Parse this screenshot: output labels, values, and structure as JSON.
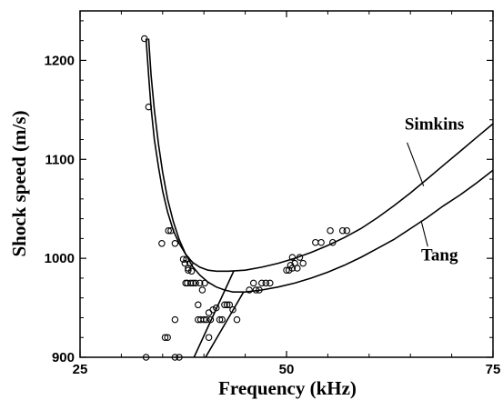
{
  "chart_data": {
    "type": "scatter",
    "title": "",
    "xlabel": "Frequency (kHz)",
    "ylabel": "Shock speed (m/s)",
    "xlim": [
      25,
      75
    ],
    "ylim": [
      900,
      1250
    ],
    "xticks": [
      25,
      50,
      75
    ],
    "yticks": [
      900,
      1000,
      1100,
      1200
    ],
    "grid": false,
    "series": [
      {
        "name": "Simkins",
        "kind": "curve",
        "label_at": [
          64.3,
          1130
        ],
        "points": [
          [
            33.0,
            1222
          ],
          [
            33.3,
            1185
          ],
          [
            33.6,
            1152
          ],
          [
            34.0,
            1120
          ],
          [
            34.5,
            1092
          ],
          [
            35.0,
            1068
          ],
          [
            35.6,
            1047
          ],
          [
            36.3,
            1028
          ],
          [
            37.0,
            1015
          ],
          [
            37.8,
            1004
          ],
          [
            38.6,
            996
          ],
          [
            39.5,
            991
          ],
          [
            40.5,
            988
          ],
          [
            41.5,
            987
          ],
          [
            43.0,
            987
          ],
          [
            45.0,
            988
          ],
          [
            47.0,
            991
          ],
          [
            49.0,
            995
          ],
          [
            51.0,
            1000
          ],
          [
            53.0,
            1006
          ],
          [
            55.0,
            1013
          ],
          [
            57.0,
            1021
          ],
          [
            59.0,
            1030
          ],
          [
            61.0,
            1041
          ],
          [
            63.0,
            1053
          ],
          [
            65.0,
            1066
          ],
          [
            67.0,
            1080
          ],
          [
            69.0,
            1094
          ],
          [
            71.0,
            1108
          ],
          [
            73.0,
            1122
          ],
          [
            75.0,
            1136
          ]
        ]
      },
      {
        "name": "Tang",
        "kind": "curve",
        "label_at": [
          66.3,
          998
        ],
        "points": [
          [
            33.3,
            1222
          ],
          [
            33.6,
            1185
          ],
          [
            34.0,
            1150
          ],
          [
            34.5,
            1115
          ],
          [
            35.0,
            1087
          ],
          [
            35.6,
            1060
          ],
          [
            36.3,
            1037
          ],
          [
            37.0,
            1019
          ],
          [
            37.8,
            1004
          ],
          [
            38.6,
            992
          ],
          [
            39.5,
            983
          ],
          [
            40.5,
            976
          ],
          [
            41.5,
            971
          ],
          [
            42.5,
            968
          ],
          [
            43.5,
            966
          ],
          [
            45.0,
            966
          ],
          [
            47.0,
            968
          ],
          [
            49.0,
            971
          ],
          [
            51.0,
            975
          ],
          [
            53.0,
            980
          ],
          [
            55.0,
            986
          ],
          [
            57.0,
            993
          ],
          [
            59.0,
            1001
          ],
          [
            61.0,
            1010
          ],
          [
            63.0,
            1019
          ],
          [
            65.0,
            1030
          ],
          [
            67.0,
            1041
          ],
          [
            69.0,
            1053
          ],
          [
            71.0,
            1064
          ],
          [
            73.0,
            1076
          ],
          [
            75.0,
            1089
          ]
        ]
      },
      {
        "name": "",
        "kind": "curve",
        "points": [
          [
            38.8,
            900
          ],
          [
            43.6,
            987
          ]
        ]
      },
      {
        "name": "",
        "kind": "curve",
        "points": [
          [
            40.2,
            900
          ],
          [
            44.8,
            966
          ]
        ]
      },
      {
        "name": "",
        "kind": "markers",
        "points": [
          [
            32.8,
            1222
          ],
          [
            33.3,
            1153
          ],
          [
            34.9,
            1015
          ],
          [
            35.7,
            1028
          ],
          [
            36.0,
            1028
          ],
          [
            36.5,
            1015
          ],
          [
            37.5,
            999
          ],
          [
            37.7,
            995
          ],
          [
            37.9,
            999
          ],
          [
            38.1,
            990
          ],
          [
            38.1,
            988
          ],
          [
            38.3,
            995
          ],
          [
            38.5,
            987
          ],
          [
            37.8,
            975
          ],
          [
            38.0,
            975
          ],
          [
            38.4,
            975
          ],
          [
            38.7,
            975
          ],
          [
            39.0,
            975
          ],
          [
            39.5,
            975
          ],
          [
            39.8,
            968
          ],
          [
            40.1,
            975
          ],
          [
            39.3,
            953
          ],
          [
            39.3,
            938
          ],
          [
            39.6,
            938
          ],
          [
            40.0,
            938
          ],
          [
            40.3,
            938
          ],
          [
            40.6,
            945
          ],
          [
            40.8,
            938
          ],
          [
            41.1,
            948
          ],
          [
            41.5,
            950
          ],
          [
            41.9,
            938
          ],
          [
            42.2,
            938
          ],
          [
            42.5,
            953
          ],
          [
            42.8,
            953
          ],
          [
            43.1,
            953
          ],
          [
            43.5,
            948
          ],
          [
            44.0,
            938
          ],
          [
            40.6,
            920
          ],
          [
            35.3,
            920
          ],
          [
            35.6,
            920
          ],
          [
            36.5,
            938
          ],
          [
            36.5,
            900
          ],
          [
            37.0,
            900
          ],
          [
            33.0,
            900
          ],
          [
            45.5,
            968
          ],
          [
            46.0,
            975
          ],
          [
            46.3,
            968
          ],
          [
            46.7,
            968
          ],
          [
            47.0,
            975
          ],
          [
            47.5,
            975
          ],
          [
            48.0,
            975
          ],
          [
            50.0,
            988
          ],
          [
            50.3,
            988
          ],
          [
            50.5,
            993
          ],
          [
            50.7,
            1001
          ],
          [
            50.7,
            990
          ],
          [
            51.0,
            995
          ],
          [
            51.3,
            990
          ],
          [
            51.6,
            1001
          ],
          [
            52.0,
            995
          ],
          [
            53.5,
            1016
          ],
          [
            54.2,
            1016
          ],
          [
            55.3,
            1028
          ],
          [
            55.6,
            1016
          ],
          [
            56.8,
            1028
          ],
          [
            57.3,
            1028
          ]
        ]
      }
    ]
  }
}
